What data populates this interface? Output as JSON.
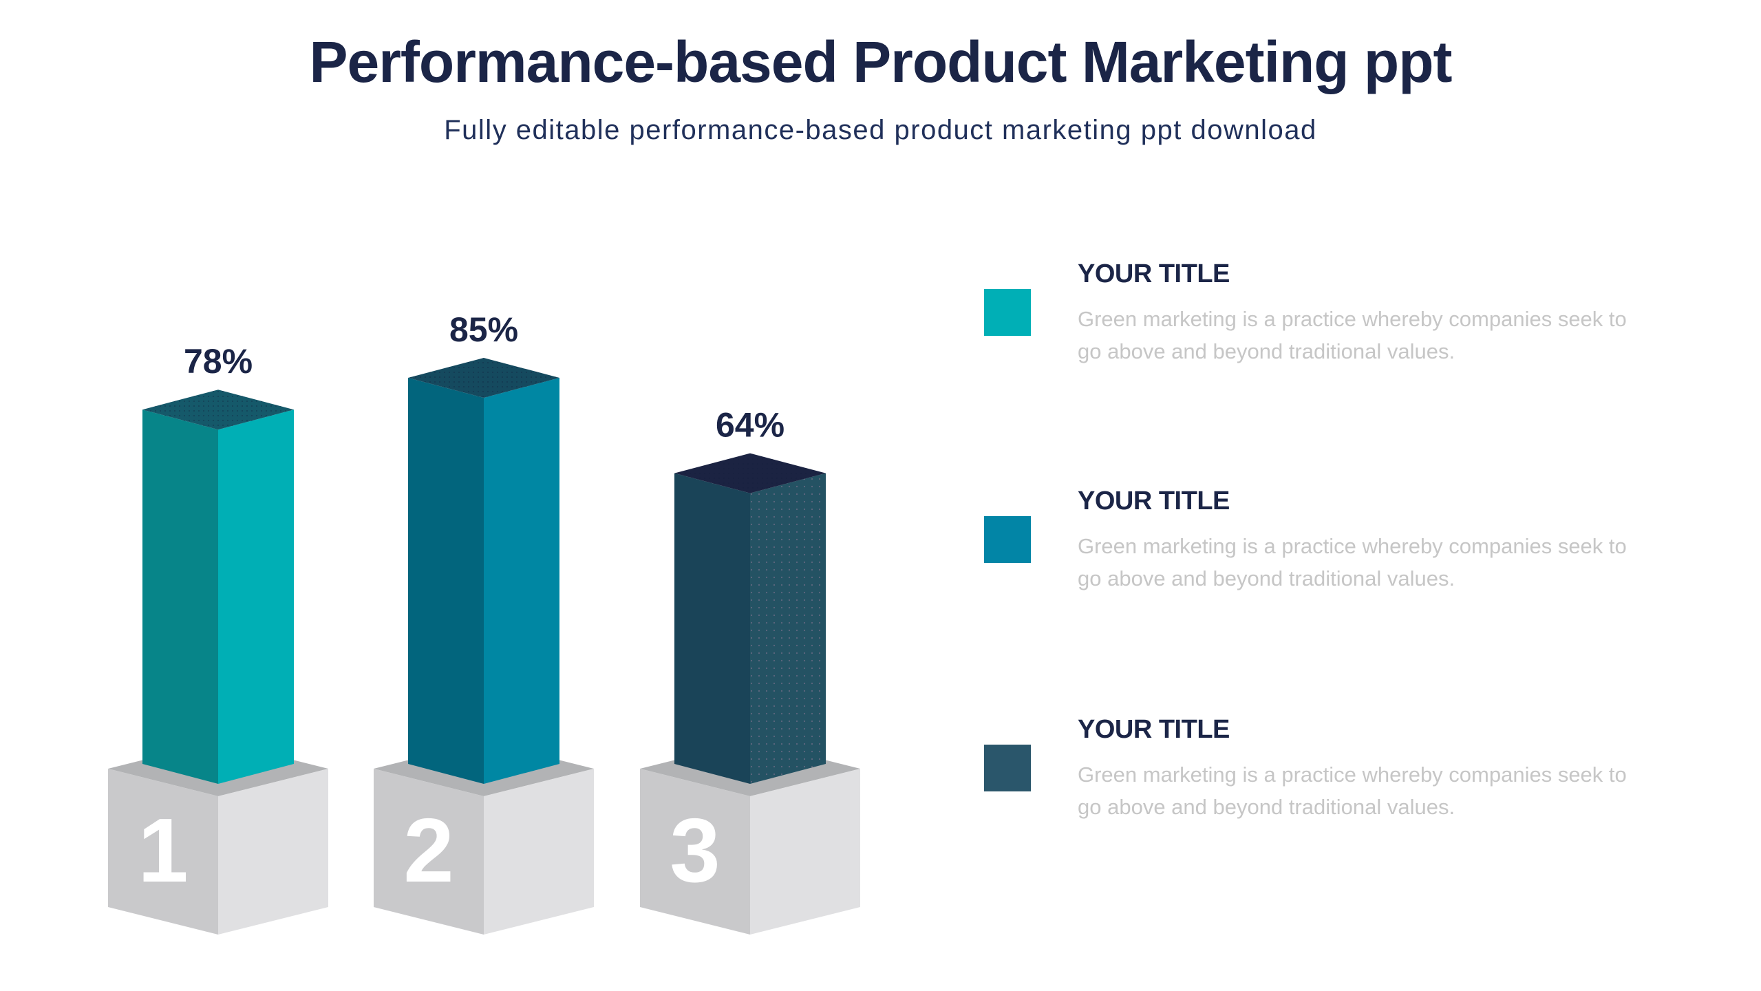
{
  "page": {
    "background_color": "#ffffff",
    "accent_navy": "#1b2547"
  },
  "header": {
    "title": "Performance-based Product Marketing ppt",
    "subtitle": "Fully editable performance-based product marketing ppt download",
    "title_color": "#1b2547",
    "subtitle_color": "#20305a"
  },
  "chart_data": {
    "type": "bar",
    "title": "",
    "xlabel": "",
    "ylabel": "",
    "ylim": [
      0,
      100
    ],
    "unit": "%",
    "grid": false,
    "legend_position": "right",
    "categories": [
      "1",
      "2",
      "3"
    ],
    "values": [
      78,
      85,
      64
    ],
    "value_labels": [
      "78%",
      "85%",
      "64%"
    ],
    "pedestal_labels": [
      "1",
      "2",
      "3"
    ],
    "label_color": "#1b2547",
    "bar_colors": [
      {
        "left": "#078589",
        "right": "#00afb5",
        "top": "#15596a"
      },
      {
        "left": "#02657d",
        "right": "#0087a3",
        "top": "#154a5f"
      },
      {
        "left": "#1a4458",
        "right": "#245263",
        "top": "#1b2342"
      }
    ],
    "pedestal_colors": {
      "left": "#c9c9cb",
      "right": "#e0e0e2",
      "top": "#b2b3b5",
      "number": "#ffffff"
    }
  },
  "legend": {
    "title_color": "#1b2547",
    "description_color": "#c6c6c6",
    "items": [
      {
        "swatch_color": "#00afb6",
        "title": "YOUR TITLE",
        "description_lines": [
          "Green marketing is a practice whereby companies seek to",
          "go above and beyond traditional values."
        ]
      },
      {
        "swatch_color": "#0285a6",
        "title": "YOUR TITLE",
        "description_lines": [
          "Green marketing is a practice whereby companies seek to",
          "go above and beyond traditional values."
        ]
      },
      {
        "swatch_color": "#2a566b",
        "title": "YOUR TITLE",
        "description_lines": [
          "Green marketing is a practice whereby companies seek to",
          "go above and beyond traditional values."
        ]
      }
    ]
  }
}
